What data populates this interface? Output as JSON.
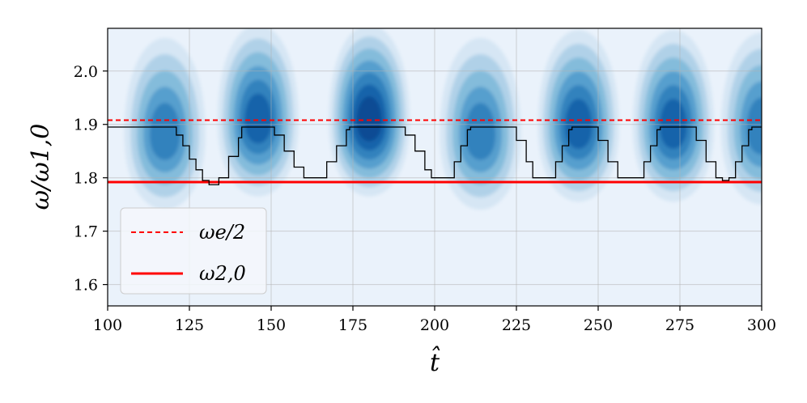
{
  "chart_data": {
    "type": "heatmap",
    "x_ticks": [
      "100",
      "125",
      "150",
      "175",
      "200",
      "225",
      "250",
      "275",
      "300"
    ],
    "y_ticks": [
      "1.6",
      "1.7",
      "1.8",
      "1.9",
      "2.0"
    ],
    "xlabel": "t̂",
    "ylabel": "ω/ω1,0",
    "xlim": [
      100,
      300
    ],
    "ylim": [
      1.56,
      2.08
    ],
    "grid": true,
    "legend_position": "lower-left",
    "colormap": "Blues",
    "colors": {
      "background": "#eaf2fb",
      "levels": [
        "#d6e6f4",
        "#b0d1e8",
        "#84bcdb",
        "#569fce",
        "#3282bd",
        "#1563aa",
        "#0a4c94"
      ],
      "reference": "#ff0000",
      "tracking": "#000000"
    },
    "contour_peaks": [
      {
        "x": 117.5,
        "y": 1.88,
        "level": 4
      },
      {
        "x": 146,
        "y": 1.905,
        "level": 5
      },
      {
        "x": 180,
        "y": 1.905,
        "level": 6
      },
      {
        "x": 214,
        "y": 1.88,
        "level": 4
      },
      {
        "x": 244,
        "y": 1.895,
        "level": 5
      },
      {
        "x": 273,
        "y": 1.895,
        "level": 5
      },
      {
        "x": 300,
        "y": 1.89,
        "level": 4
      }
    ],
    "series": [
      {
        "name": "ω_e/2",
        "style": "dashed",
        "color": "#ff0000",
        "y": 1.908
      },
      {
        "name": "ω_2,0",
        "style": "solid",
        "color": "#ff0000",
        "y": 1.792
      }
    ],
    "tracking_line": {
      "color": "#000000",
      "points": [
        [
          100,
          1.895
        ],
        [
          120,
          1.895
        ],
        [
          121,
          1.88
        ],
        [
          123,
          1.86
        ],
        [
          125,
          1.835
        ],
        [
          127,
          1.815
        ],
        [
          129,
          1.795
        ],
        [
          131,
          1.787
        ],
        [
          133,
          1.787
        ],
        [
          134,
          1.8
        ],
        [
          137,
          1.84
        ],
        [
          140,
          1.875
        ],
        [
          141,
          1.895
        ],
        [
          149,
          1.895
        ],
        [
          151,
          1.88
        ],
        [
          154,
          1.85
        ],
        [
          157,
          1.82
        ],
        [
          160,
          1.8
        ],
        [
          164,
          1.8
        ],
        [
          167,
          1.83
        ],
        [
          170,
          1.86
        ],
        [
          173,
          1.89
        ],
        [
          174,
          1.895
        ],
        [
          189,
          1.895
        ],
        [
          191,
          1.88
        ],
        [
          194,
          1.85
        ],
        [
          197,
          1.815
        ],
        [
          199,
          1.8
        ],
        [
          204,
          1.8
        ],
        [
          206,
          1.83
        ],
        [
          208,
          1.86
        ],
        [
          210,
          1.89
        ],
        [
          211,
          1.895
        ],
        [
          223,
          1.895
        ],
        [
          225,
          1.87
        ],
        [
          228,
          1.83
        ],
        [
          230,
          1.8
        ],
        [
          235,
          1.8
        ],
        [
          237,
          1.83
        ],
        [
          239,
          1.86
        ],
        [
          241,
          1.89
        ],
        [
          242,
          1.895
        ],
        [
          248,
          1.895
        ],
        [
          250,
          1.87
        ],
        [
          253,
          1.83
        ],
        [
          256,
          1.8
        ],
        [
          262,
          1.8
        ],
        [
          264,
          1.83
        ],
        [
          266,
          1.86
        ],
        [
          268,
          1.89
        ],
        [
          269,
          1.895
        ],
        [
          278,
          1.895
        ],
        [
          280,
          1.87
        ],
        [
          283,
          1.83
        ],
        [
          286,
          1.8
        ],
        [
          288,
          1.795
        ],
        [
          290,
          1.8
        ],
        [
          292,
          1.83
        ],
        [
          294,
          1.86
        ],
        [
          296,
          1.89
        ],
        [
          297,
          1.895
        ],
        [
          300,
          1.895
        ]
      ]
    },
    "legend": [
      {
        "label": "ωe/2",
        "style": "dashed",
        "color": "#ff0000"
      },
      {
        "label": "ω2,0",
        "style": "solid",
        "color": "#ff0000"
      }
    ]
  }
}
